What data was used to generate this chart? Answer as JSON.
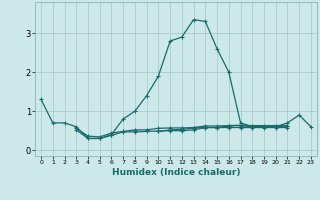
{
  "title": "",
  "xlabel": "Humidex (Indice chaleur)",
  "ylabel": "",
  "background_color": "#cce8e8",
  "line_color": "#1a6b6b",
  "grid_color": "#aacccc",
  "xlim": [
    -0.5,
    23.5
  ],
  "ylim": [
    -0.15,
    3.8
  ],
  "x_ticks": [
    0,
    1,
    2,
    3,
    4,
    5,
    6,
    7,
    8,
    9,
    10,
    11,
    12,
    13,
    14,
    15,
    16,
    17,
    18,
    19,
    20,
    21,
    22,
    23
  ],
  "y_ticks": [
    0,
    1,
    2,
    3
  ],
  "series": [
    [
      1.3,
      0.7,
      0.7,
      0.6,
      0.3,
      0.3,
      0.4,
      0.8,
      1.0,
      1.4,
      1.9,
      2.8,
      2.9,
      3.35,
      3.3,
      2.6,
      2.0,
      0.7,
      0.6,
      0.6,
      0.6,
      0.7,
      0.9,
      0.6
    ],
    [
      null,
      null,
      null,
      0.52,
      0.3,
      0.3,
      0.38,
      0.47,
      0.47,
      0.48,
      0.49,
      0.5,
      0.5,
      0.52,
      0.58,
      0.58,
      0.62,
      0.63,
      0.6,
      0.6,
      0.6,
      0.62,
      null,
      null
    ],
    [
      null,
      null,
      null,
      0.56,
      0.36,
      0.34,
      0.44,
      0.48,
      0.52,
      0.52,
      0.56,
      0.57,
      0.57,
      0.58,
      0.62,
      0.62,
      0.63,
      0.64,
      0.63,
      0.63,
      0.63,
      0.63,
      null,
      null
    ],
    [
      null,
      null,
      null,
      null,
      null,
      null,
      null,
      null,
      null,
      null,
      0.48,
      0.52,
      0.53,
      0.57,
      0.58,
      0.58,
      0.58,
      0.58,
      0.58,
      0.58,
      0.58,
      0.58,
      null,
      null
    ]
  ]
}
